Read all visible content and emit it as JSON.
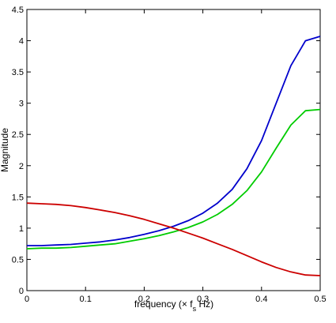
{
  "chart_data": {
    "type": "line",
    "title": "",
    "xlabel": "frequency (× f",
    "xlabel_sub": "s",
    "xlabel_tail": " Hz)",
    "ylabel": "Magnitude",
    "xlim": [
      0,
      0.5
    ],
    "ylim": [
      0,
      4.5
    ],
    "xticks": [
      "0",
      "0.1",
      "0.2",
      "0.3",
      "0.4",
      "0.5"
    ],
    "yticks": [
      "0",
      "0.5",
      "1",
      "1.5",
      "2",
      "2.5",
      "3",
      "3.5",
      "4",
      "4.5"
    ],
    "grid": false,
    "legend": "none",
    "x": [
      0,
      0.025,
      0.05,
      0.075,
      0.1,
      0.125,
      0.15,
      0.175,
      0.2,
      0.225,
      0.25,
      0.275,
      0.3,
      0.325,
      0.35,
      0.375,
      0.4,
      0.425,
      0.45,
      0.475,
      0.5
    ],
    "series": [
      {
        "color": "#0000cc",
        "values": [
          0.72,
          0.72,
          0.73,
          0.74,
          0.76,
          0.78,
          0.81,
          0.85,
          0.9,
          0.96,
          1.03,
          1.12,
          1.24,
          1.4,
          1.62,
          1.95,
          2.4,
          3.0,
          3.6,
          4.0,
          4.07
        ]
      },
      {
        "color": "#00cc00",
        "values": [
          0.67,
          0.68,
          0.68,
          0.69,
          0.71,
          0.73,
          0.75,
          0.79,
          0.83,
          0.88,
          0.94,
          1.01,
          1.1,
          1.22,
          1.38,
          1.6,
          1.9,
          2.28,
          2.65,
          2.88,
          2.9
        ]
      },
      {
        "color": "#cc0000",
        "values": [
          1.4,
          1.39,
          1.38,
          1.36,
          1.33,
          1.29,
          1.25,
          1.2,
          1.14,
          1.07,
          1.0,
          0.92,
          0.84,
          0.75,
          0.66,
          0.56,
          0.46,
          0.37,
          0.3,
          0.25,
          0.24
        ]
      }
    ]
  }
}
